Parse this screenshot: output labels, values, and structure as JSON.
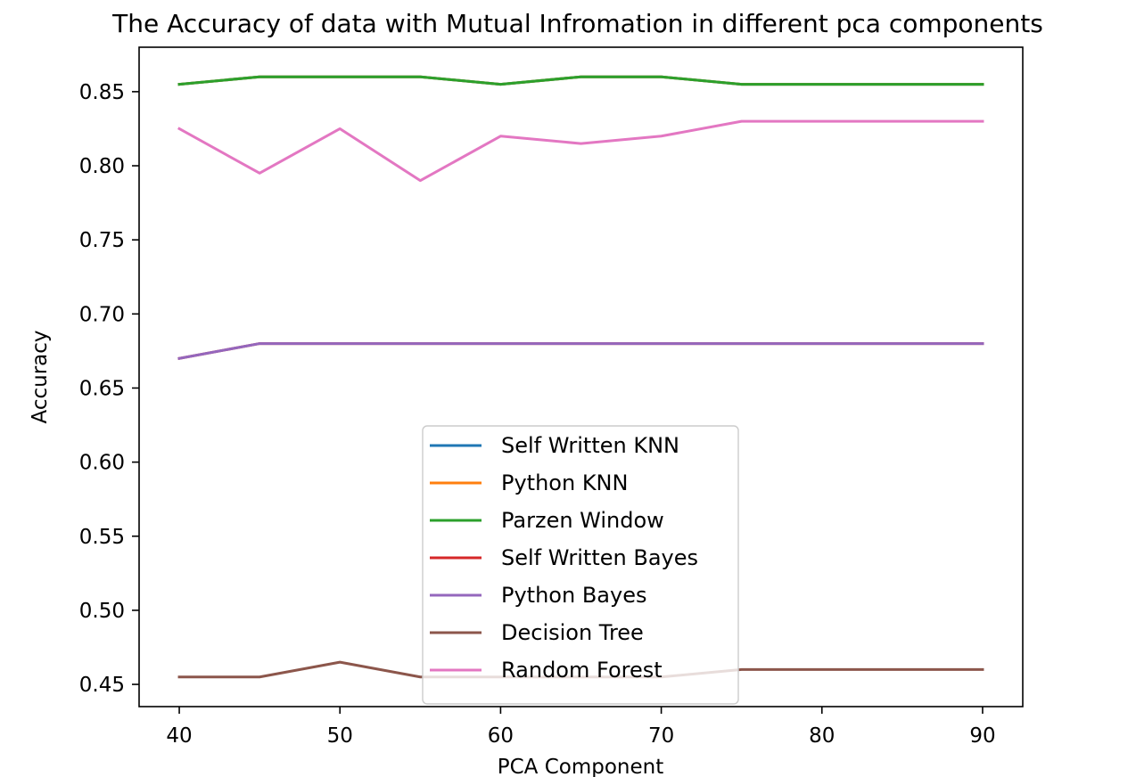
{
  "chart_data": {
    "type": "line",
    "title": "The Accuracy of data with Mutual Infromation in different pca components",
    "xlabel": "PCA Component",
    "ylabel": "Accuracy",
    "x": [
      40,
      45,
      50,
      55,
      60,
      65,
      70,
      75,
      80,
      85,
      90
    ],
    "xlim": [
      37.5,
      92.5
    ],
    "ylim": [
      0.435,
      0.88
    ],
    "xticks": [
      "40",
      "50",
      "60",
      "70",
      "80",
      "90"
    ],
    "yticks": [
      "0.45",
      "0.50",
      "0.55",
      "0.60",
      "0.65",
      "0.70",
      "0.75",
      "0.80",
      "0.85"
    ],
    "grid": false,
    "legend_position": "lower center",
    "series": [
      {
        "name": "Self Written KNN",
        "color": "#1f77b4",
        "values": [
          0.855,
          0.86,
          0.86,
          0.86,
          0.855,
          0.86,
          0.86,
          0.855,
          0.855,
          0.855,
          0.855
        ]
      },
      {
        "name": "Python KNN",
        "color": "#ff7f0e",
        "values": [
          0.855,
          0.86,
          0.86,
          0.86,
          0.855,
          0.86,
          0.86,
          0.855,
          0.855,
          0.855,
          0.855
        ]
      },
      {
        "name": "Parzen Window",
        "color": "#2ca02c",
        "values": [
          0.855,
          0.86,
          0.86,
          0.86,
          0.855,
          0.86,
          0.86,
          0.855,
          0.855,
          0.855,
          0.855
        ]
      },
      {
        "name": "Self Written Bayes",
        "color": "#d62728",
        "values": [
          0.67,
          0.68,
          0.68,
          0.68,
          0.68,
          0.68,
          0.68,
          0.68,
          0.68,
          0.68,
          0.68
        ]
      },
      {
        "name": "Python Bayes",
        "color": "#9467bd",
        "values": [
          0.67,
          0.68,
          0.68,
          0.68,
          0.68,
          0.68,
          0.68,
          0.68,
          0.68,
          0.68,
          0.68
        ]
      },
      {
        "name": "Decision Tree",
        "color": "#8c564b",
        "values": [
          0.455,
          0.455,
          0.465,
          0.455,
          0.455,
          0.455,
          0.455,
          0.46,
          0.46,
          0.46,
          0.46
        ]
      },
      {
        "name": "Random Forest",
        "color": "#e377c2",
        "values": [
          0.825,
          0.795,
          0.825,
          0.79,
          0.82,
          0.815,
          0.82,
          0.83,
          0.83,
          0.83,
          0.83
        ]
      }
    ]
  }
}
